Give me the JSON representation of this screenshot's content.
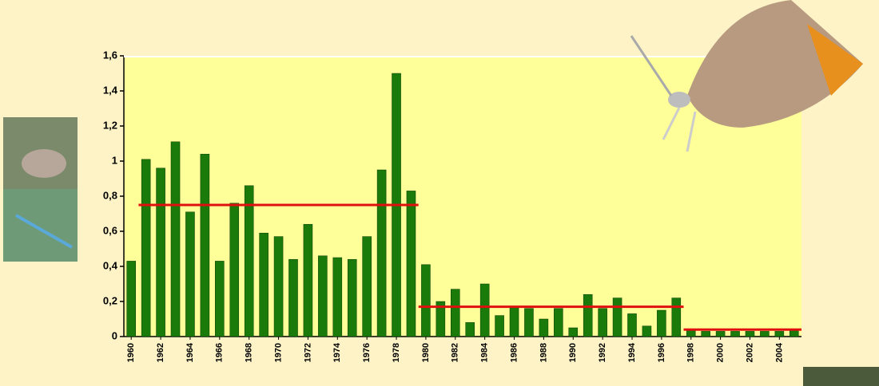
{
  "chart_data": {
    "type": "bar",
    "x": [
      1960,
      1961,
      1962,
      1963,
      1964,
      1965,
      1966,
      1967,
      1968,
      1969,
      1970,
      1971,
      1972,
      1973,
      1974,
      1975,
      1976,
      1977,
      1978,
      1979,
      1980,
      1981,
      1982,
      1983,
      1984,
      1985,
      1986,
      1987,
      1988,
      1989,
      1990,
      1991,
      1992,
      1993,
      1994,
      1995,
      1996,
      1997,
      1998,
      1999,
      2000,
      2001,
      2002,
      2003,
      2004,
      2005
    ],
    "values": [
      0.43,
      1.01,
      0.96,
      1.11,
      0.71,
      1.04,
      0.43,
      0.76,
      0.86,
      0.59,
      0.57,
      0.44,
      0.64,
      0.46,
      0.45,
      0.44,
      0.57,
      0.95,
      1.5,
      0.83,
      0.41,
      0.2,
      0.27,
      0.08,
      0.3,
      0.12,
      0.17,
      0.16,
      0.1,
      0.16,
      0.05,
      0.24,
      0.16,
      0.22,
      0.13,
      0.06,
      0.15,
      0.22,
      0.04,
      0.03,
      0.03,
      0.03,
      0.03,
      0.03,
      0.03,
      0.04
    ],
    "color": "#1a7a0a",
    "xlim": [
      1959.5,
      2005.5
    ],
    "xticks": [
      1960,
      1962,
      1964,
      1966,
      1968,
      1970,
      1972,
      1974,
      1976,
      1978,
      1980,
      1982,
      1984,
      1986,
      1988,
      1990,
      1992,
      1994,
      1996,
      1998,
      2000,
      2002,
      2004
    ],
    "ylim": [
      0,
      1.6
    ],
    "yticks": [
      0,
      {
        "value": 0.2,
        "label": "0,2"
      },
      {
        "value": 0.4,
        "label": "0,4"
      },
      {
        "value": 0.6,
        "label": "0,6"
      },
      {
        "value": 0.8,
        "label": "0,8"
      },
      1,
      {
        "value": 1.2,
        "label": "1,2"
      },
      {
        "value": 1.4,
        "label": "1,4"
      },
      {
        "value": 1.6,
        "label": "1,6"
      }
    ],
    "reference_lines": [
      {
        "x": [
          1960.5,
          1979.5
        ],
        "y": 0.75,
        "color": "#e01010"
      },
      {
        "x": [
          1979.5,
          1997.5
        ],
        "y": 0.17,
        "color": "#e01010"
      },
      {
        "x": [
          1997.5,
          2005.5
        ],
        "y": 0.04,
        "color": "#e01010"
      }
    ]
  }
}
